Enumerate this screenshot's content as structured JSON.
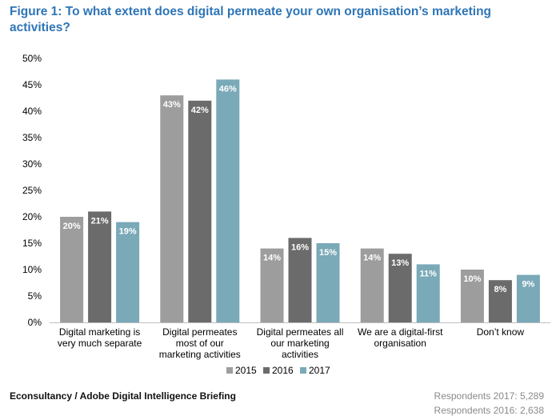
{
  "figure_title": "Figure 1: To what extent does digital permeate your own organisation’s marketing activities?",
  "source": "Econsultancy / Adobe Digital Intelligence Briefing",
  "respondents": [
    "Respondents 2017: 5,289",
    "Respondents 2016: 2,638"
  ],
  "colors": {
    "title": "#2e75b6",
    "2015": "#9d9d9d",
    "2016": "#6b6b6b",
    "2017": "#7aa9b8"
  },
  "chart_data": {
    "type": "bar",
    "title": "Figure 1: To what extent does digital permeate your own organisation’s marketing activities?",
    "categories": [
      [
        "Digital marketing is",
        "very much separate"
      ],
      [
        "Digital permeates",
        "most of our",
        "marketing activities"
      ],
      [
        "Digital permeates all",
        "our marketing",
        "activities"
      ],
      [
        "We are a digital-first",
        "organisation"
      ],
      [
        "Don’t know"
      ]
    ],
    "series": [
      {
        "name": "2015",
        "values": [
          20,
          43,
          14,
          14,
          10
        ],
        "labels": [
          "20%",
          "43%",
          "14%",
          "14%",
          "10%"
        ]
      },
      {
        "name": "2016",
        "values": [
          21,
          42,
          16,
          13,
          8
        ],
        "labels": [
          "21%",
          "42%",
          "16%",
          "13%",
          "8%"
        ]
      },
      {
        "name": "2017",
        "values": [
          19,
          46,
          15,
          11,
          9
        ],
        "labels": [
          "19%",
          "46%",
          "15%",
          "11%",
          "9%"
        ]
      }
    ],
    "y_ticks": [
      "0%",
      "5%",
      "10%",
      "15%",
      "20%",
      "25%",
      "30%",
      "35%",
      "40%",
      "45%",
      "50%"
    ],
    "ylim": [
      0,
      50
    ],
    "xlabel": "",
    "ylabel": "",
    "grid": false,
    "legend_position": "bottom"
  }
}
